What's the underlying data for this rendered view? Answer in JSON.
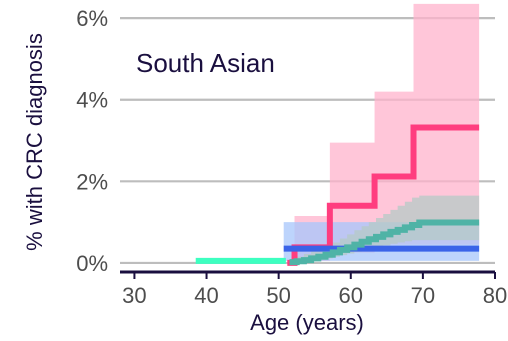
{
  "chart_data": {
    "type": "line",
    "annotation": "South Asian",
    "xlabel": "Age (years)",
    "ylabel": "% with CRC diagnosis",
    "xlim": [
      28,
      80
    ],
    "ylim": [
      -0.1,
      6.2
    ],
    "x_ticks": [
      30,
      40,
      50,
      60,
      70,
      80
    ],
    "x_tick_labels": [
      "30",
      "40",
      "50",
      "60",
      "70",
      "80"
    ],
    "y_ticks": [
      0,
      2,
      4,
      6
    ],
    "y_tick_labels": [
      "0%",
      "2%",
      "4%",
      "6%"
    ],
    "grid": "horizontal",
    "legend": "none",
    "series": [
      {
        "color": "#ff3d7f",
        "band_color": "#ffb3cc",
        "x": [
          51.2,
          52.2,
          57.1,
          63.3,
          68.7,
          77.8
        ],
        "y": [
          0,
          0.38,
          1.4,
          2.12,
          3.32,
          3.32
        ],
        "lower": [
          0,
          0,
          0.05,
          0.25,
          0.45,
          0.45
        ],
        "upper": [
          0,
          1.15,
          2.95,
          4.2,
          6.35,
          6.35
        ]
      },
      {
        "color": "#3a63e8",
        "band_color": "#a7c6fb",
        "x": [
          50.7,
          77.8
        ],
        "y": [
          0.35,
          0.35
        ],
        "lower": [
          0.05,
          0.05
        ],
        "upper": [
          1.0,
          1.0
        ]
      },
      {
        "color": "#4fb3a6",
        "band_color": "#b5c9c6",
        "x": [
          51.5,
          52.5,
          53.5,
          54.5,
          55.5,
          56.5,
          57.5,
          58.5,
          59.5,
          60.5,
          61.5,
          62.5,
          63.5,
          64.5,
          65.5,
          66.5,
          67.5,
          68.5,
          69.5,
          77.8
        ],
        "y": [
          0.02,
          0.04,
          0.07,
          0.11,
          0.15,
          0.2,
          0.26,
          0.32,
          0.38,
          0.45,
          0.52,
          0.58,
          0.64,
          0.7,
          0.76,
          0.81,
          0.87,
          0.93,
          0.99,
          0.99
        ],
        "lower": [
          0,
          0,
          0.01,
          0.03,
          0.05,
          0.08,
          0.11,
          0.15,
          0.19,
          0.23,
          0.27,
          0.31,
          0.35,
          0.39,
          0.43,
          0.47,
          0.5,
          0.53,
          0.56,
          0.56
        ],
        "upper": [
          0.1,
          0.15,
          0.22,
          0.28,
          0.35,
          0.42,
          0.5,
          0.6,
          0.7,
          0.8,
          0.9,
          1.0,
          1.1,
          1.2,
          1.3,
          1.4,
          1.5,
          1.6,
          1.65,
          1.65
        ]
      },
      {
        "color": "#3dffc0",
        "x": [
          38.5,
          51.0
        ],
        "y": [
          0.05,
          0.05
        ]
      }
    ]
  }
}
